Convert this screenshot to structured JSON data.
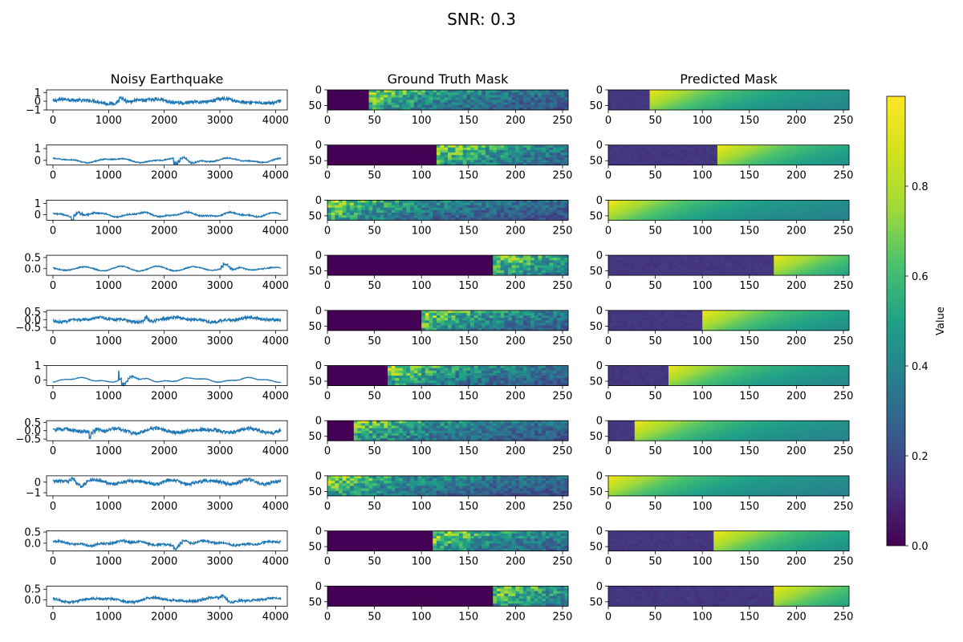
{
  "figure": {
    "suptitle": "SNR: 0.3",
    "columns": [
      "Noisy Earthquake",
      "Ground Truth Mask",
      "Predicted Mask"
    ],
    "colorbar": {
      "label": "Value",
      "ticks": [
        "0.0",
        "0.2",
        "0.4",
        "0.6",
        "0.8"
      ],
      "colormap": "viridis",
      "range": [
        0,
        1
      ]
    },
    "line_color": "#1f77b4"
  },
  "chart_data": [
    {
      "type": "line",
      "title": "Noisy Earthquake",
      "xlim": [
        0,
        4096
      ],
      "xticks": [
        0,
        1000,
        2000,
        3000,
        4000
      ],
      "rows": [
        {
          "ylim": [
            -1.0,
            1.3
          ],
          "yticks": [
            "1",
            "0",
            "−1"
          ],
          "ytick_values": [
            1,
            0,
            -1
          ],
          "event_sample": 1150,
          "noise": 0.12,
          "event_amp": 0.7
        },
        {
          "ylim": [
            -0.4,
            1.3
          ],
          "yticks": [
            "1",
            "0"
          ],
          "ytick_values": [
            1,
            0
          ],
          "event_sample": 2150,
          "noise": 0.03,
          "event_amp": 0.9
        },
        {
          "ylim": [
            -0.5,
            1.3
          ],
          "yticks": [
            "1",
            "0"
          ],
          "ytick_values": [
            1,
            0
          ],
          "event_sample": 330,
          "noise": 0.04,
          "event_amp": 0.8
        },
        {
          "ylim": [
            -0.3,
            0.6
          ],
          "yticks": [
            "0.5",
            "0.0"
          ],
          "ytick_values": [
            0.5,
            0.0
          ],
          "event_sample": 3020,
          "noise": 0.015,
          "event_amp": 0.35
        },
        {
          "ylim": [
            -0.7,
            0.6
          ],
          "yticks": [
            "0.5",
            "0.0",
            "−0.5"
          ],
          "ytick_values": [
            0.5,
            0.0,
            -0.5
          ],
          "event_sample": 1650,
          "noise": 0.06,
          "event_amp": 0.35
        },
        {
          "ylim": [
            -0.4,
            1.0
          ],
          "yticks": [
            "1",
            "0"
          ],
          "ytick_values": [
            1,
            0
          ],
          "event_sample": 1180,
          "noise": 0.01,
          "event_amp": 0.9
        },
        {
          "ylim": [
            -0.6,
            0.6
          ],
          "yticks": [
            "0.5",
            "0.0",
            "−0.5"
          ],
          "ytick_values": [
            0.5,
            0.0,
            -0.5
          ],
          "event_sample": 650,
          "noise": 0.07,
          "event_amp": 0.4
        },
        {
          "ylim": [
            -1.3,
            0.6
          ],
          "yticks": [
            "0",
            "−1"
          ],
          "ytick_values": [
            0,
            -1
          ],
          "event_sample": 290,
          "noise": 0.1,
          "event_amp": 0.8
        },
        {
          "ylim": [
            -0.35,
            0.55
          ],
          "yticks": [
            "0.5",
            "0.0"
          ],
          "ytick_values": [
            0.5,
            0.0
          ],
          "event_sample": 2150,
          "noise": 0.03,
          "event_amp": 0.3
        },
        {
          "ylim": [
            -0.3,
            0.65
          ],
          "yticks": [
            "0.5",
            "0.0"
          ],
          "ytick_values": [
            0.5,
            0.0
          ],
          "event_sample": 3000,
          "noise": 0.035,
          "event_amp": 0.25
        }
      ]
    },
    {
      "type": "heatmap",
      "title": "Ground Truth Mask",
      "xlim": [
        0,
        256
      ],
      "ylim": [
        0,
        64
      ],
      "xticks": [
        0,
        50,
        100,
        150,
        200,
        250
      ],
      "yticks": [
        0,
        50
      ],
      "onsets": [
        43,
        118,
        2,
        175,
        101,
        63,
        30,
        2,
        114,
        175
      ]
    },
    {
      "type": "heatmap",
      "title": "Predicted Mask",
      "xlim": [
        0,
        256
      ],
      "ylim": [
        0,
        64
      ],
      "xticks": [
        0,
        50,
        100,
        150,
        200,
        250
      ],
      "yticks": [
        0,
        50
      ],
      "onsets": [
        43,
        118,
        2,
        175,
        101,
        63,
        30,
        2,
        114,
        175
      ]
    }
  ]
}
